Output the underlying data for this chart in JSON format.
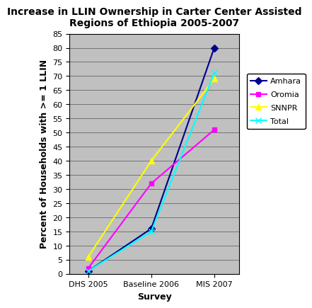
{
  "title": "Increase in LLIN Ownership in Carter Center Assisted\nRegions of Ethiopia 2005-2007",
  "xlabel": "Survey",
  "ylabel": "Percent of Households with >= 1 LLIN",
  "x_labels": [
    "DHS 2005",
    "Baseline 2006",
    "MIS 2007"
  ],
  "series": [
    {
      "name": "Amhara",
      "values": [
        1,
        16,
        80
      ],
      "color": "#00008B",
      "marker": "D",
      "markersize": 5,
      "linewidth": 1.5
    },
    {
      "name": "Oromia",
      "values": [
        2,
        32,
        51
      ],
      "color": "#FF00FF",
      "marker": "s",
      "markersize": 5,
      "linewidth": 1.5
    },
    {
      "name": "SNNPR",
      "values": [
        6,
        40,
        69
      ],
      "color": "#FFFF00",
      "marker": "^",
      "markersize": 6,
      "linewidth": 1.5
    },
    {
      "name": "Total",
      "values": [
        1,
        15,
        71
      ],
      "color": "#00FFFF",
      "marker": "x",
      "markersize": 6,
      "linewidth": 1.5
    }
  ],
  "ylim": [
    0,
    85
  ],
  "yticks": [
    0,
    5,
    10,
    15,
    20,
    25,
    30,
    35,
    40,
    45,
    50,
    55,
    60,
    65,
    70,
    75,
    80,
    85
  ],
  "plot_bg_color": "#C0C0C0",
  "fig_bg_color": "#FFFFFF",
  "title_fontsize": 10,
  "axis_label_fontsize": 9,
  "tick_fontsize": 8,
  "legend_fontsize": 8
}
